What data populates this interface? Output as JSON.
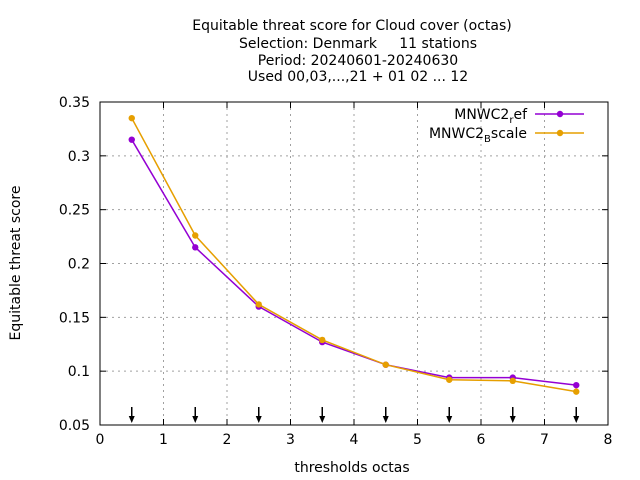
{
  "chart_data": {
    "type": "line",
    "title_lines": [
      "Equitable threat score  for Cloud cover (octas)",
      "Selection: Denmark     11 stations",
      "Period: 20240601-20240630",
      "Used 00,03,...,21 + 01 02 ... 12"
    ],
    "xlabel": "thresholds octas",
    "ylabel": "Equitable threat score",
    "xlim": [
      0,
      8
    ],
    "ylim": [
      0.05,
      0.35
    ],
    "xticks": [
      0,
      1,
      2,
      3,
      4,
      5,
      6,
      7,
      8
    ],
    "yticks": [
      0.05,
      0.1,
      0.15,
      0.2,
      0.25,
      0.3,
      0.35
    ],
    "ytick_labels": [
      "0.05",
      "0.1",
      "0.15",
      "0.2",
      "0.25",
      "0.3",
      "0.35"
    ],
    "grid": true,
    "legend_position": "top-right",
    "arrow_markers_x": [
      0.5,
      1.5,
      2.5,
      3.5,
      4.5,
      5.5,
      6.5,
      7.5
    ],
    "series": [
      {
        "name": "MNWC2_ref",
        "legend_base": "MNWC2",
        "legend_sub": "r",
        "legend_rest": "ef",
        "color": "#9400d3",
        "x": [
          0.5,
          1.5,
          2.5,
          3.5,
          4.5,
          5.5,
          6.5,
          7.5
        ],
        "values": [
          0.315,
          0.215,
          0.16,
          0.127,
          0.106,
          0.094,
          0.094,
          0.087
        ]
      },
      {
        "name": "MNWC2_Bscale",
        "legend_base": "MNWC2",
        "legend_sub": "B",
        "legend_rest": "scale",
        "color": "#e69f00",
        "x": [
          0.5,
          1.5,
          2.5,
          3.5,
          4.5,
          5.5,
          6.5,
          7.5
        ],
        "values": [
          0.335,
          0.226,
          0.162,
          0.129,
          0.106,
          0.092,
          0.091,
          0.081
        ]
      }
    ]
  }
}
